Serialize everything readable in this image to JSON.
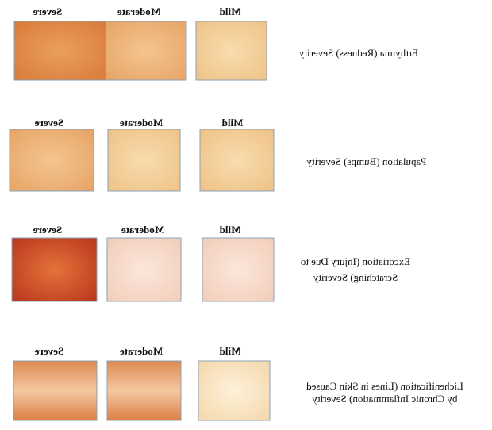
{
  "rows": [
    {
      "labels": [
        "Severe",
        "Moderate",
        "Mild"
      ],
      "description": [
        "Erthymia (Redness) Severity"
      ]
    },
    {
      "labels": [
        "Severe",
        "Moderate",
        "Mild"
      ],
      "description": [
        "Papulation (Bumps) Severity"
      ]
    },
    {
      "labels": [
        "Severe",
        "Moderate",
        "Mild"
      ],
      "description": [
        "Excoriation (Injury Due to",
        "Scratching) Severity"
      ]
    },
    {
      "labels": [
        "Severe",
        "Moderate",
        "Mild"
      ],
      "description": [
        "Lichenification (Lines in Skin Caused",
        "by Chronic Inflammation) Severity"
      ]
    }
  ]
}
